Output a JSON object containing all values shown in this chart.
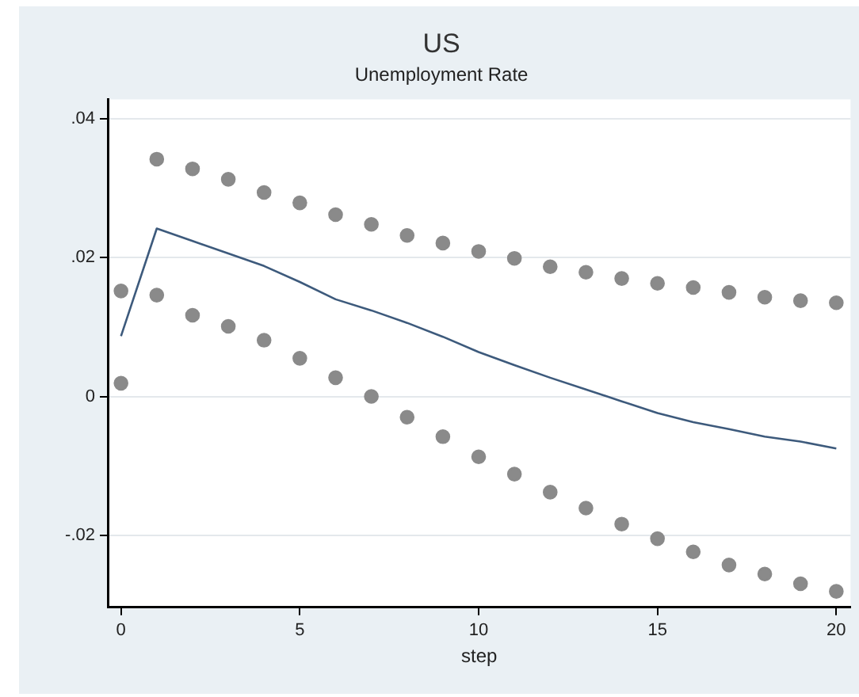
{
  "chart_data": {
    "type": "line",
    "title": "US",
    "subtitle": "Unemployment Rate",
    "xlabel": "step",
    "x": [
      0,
      1,
      2,
      3,
      4,
      5,
      6,
      7,
      8,
      9,
      10,
      11,
      12,
      13,
      14,
      15,
      16,
      17,
      18,
      19,
      20
    ],
    "series": [
      {
        "color": "#3d5a7c",
        "marker": "none",
        "values": [
          0.0087,
          0.0242,
          0.0224,
          0.0206,
          0.0188,
          0.0165,
          0.014,
          0.0124,
          0.0106,
          0.0086,
          0.0064,
          0.0045,
          0.0027,
          0.001,
          -0.0007,
          -0.0024,
          -0.0037,
          -0.0047,
          -0.0058,
          -0.0065,
          -0.0075
        ]
      },
      {
        "type": "scatter",
        "color": "#8a8a8a",
        "marker": "circle",
        "values": [
          0.0152,
          0.0342,
          0.0328,
          0.0313,
          0.0294,
          0.0279,
          0.0262,
          0.0248,
          0.0232,
          0.0221,
          0.0209,
          0.0199,
          0.0187,
          0.0179,
          0.017,
          0.0163,
          0.0157,
          0.015,
          0.0143,
          0.0138,
          0.0135
        ]
      },
      {
        "type": "scatter",
        "color": "#8a8a8a",
        "marker": "circle",
        "values": [
          0.0019,
          0.0146,
          0.0117,
          0.0101,
          0.0081,
          0.0055,
          0.0027,
          0,
          -0.003,
          -0.0058,
          -0.0087,
          -0.0112,
          -0.0138,
          -0.0161,
          -0.0184,
          -0.0205,
          -0.0224,
          -0.0243,
          -0.0256,
          -0.027,
          -0.0281
        ]
      }
    ],
    "xlim": [
      -0.37,
      20.4
    ],
    "xticks": [
      0,
      5,
      10,
      15,
      20
    ],
    "ylim": [
      -0.0304,
      0.0428
    ],
    "yticks": [
      {
        "value": -0.02,
        "label": "-.02"
      },
      {
        "value": 0,
        "label": "0"
      },
      {
        "value": 0.02,
        "label": ".02"
      },
      {
        "value": 0.04,
        "label": ".04"
      }
    ],
    "grid": "y",
    "legend": false
  }
}
